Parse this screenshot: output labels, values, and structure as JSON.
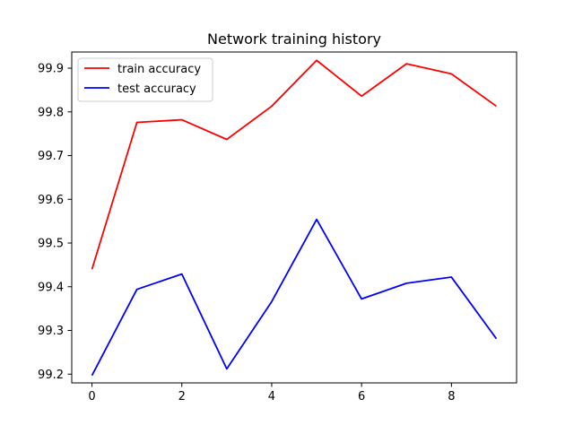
{
  "chart_data": {
    "type": "line",
    "title": "Network training history",
    "xlabel": "",
    "ylabel": "",
    "x": [
      0,
      1,
      2,
      3,
      4,
      5,
      6,
      7,
      8,
      9
    ],
    "xlim": [
      -0.45,
      9.45
    ],
    "ylim": [
      99.18,
      99.937
    ],
    "xticks": [
      0,
      2,
      4,
      6,
      8
    ],
    "xtick_labels": [
      "0",
      "2",
      "4",
      "6",
      "8"
    ],
    "yticks": [
      99.2,
      99.3,
      99.4,
      99.5,
      99.6,
      99.7,
      99.8,
      99.9
    ],
    "ytick_labels": [
      "99.2",
      "99.3",
      "99.4",
      "99.5",
      "99.6",
      "99.7",
      "99.8",
      "99.9"
    ],
    "grid": false,
    "legend_position": "top-left",
    "series": [
      {
        "name": "train accuracy",
        "color": "#ff0000",
        "values": [
          99.44,
          99.776,
          99.782,
          99.737,
          99.813,
          99.918,
          99.836,
          99.91,
          99.887,
          99.813
        ]
      },
      {
        "name": "test accuracy",
        "color": "#0000ff",
        "values": [
          99.197,
          99.394,
          99.429,
          99.212,
          99.366,
          99.554,
          99.372,
          99.408,
          99.422,
          99.281
        ]
      }
    ]
  }
}
